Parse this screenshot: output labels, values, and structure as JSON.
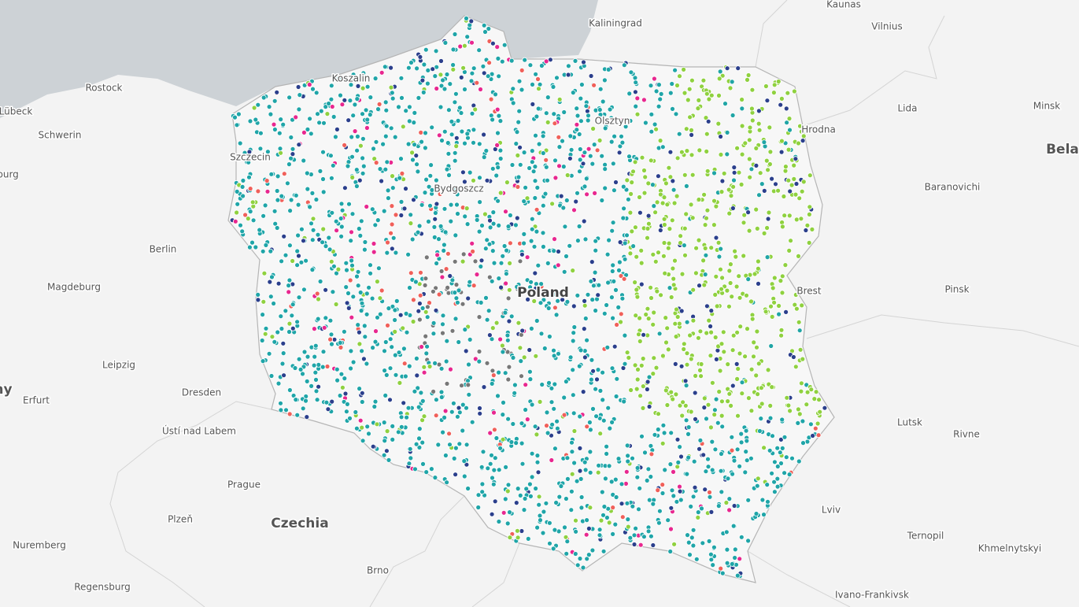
{
  "map": {
    "labels": [
      "Kaunas",
      "Vilnius",
      "Kaliningrad",
      "Rostock",
      "Lübeck",
      "Schwerin",
      "burg",
      "Minsk",
      "Bela",
      "Lida",
      "Hrodna",
      "Baranovichi",
      "Berlin",
      "Magdeburg",
      "Pinsk",
      "Brest",
      "Leipzig",
      "Dresden",
      "Erfurt",
      "ny",
      "Ústí nad Labem",
      "Lutsk",
      "Rivne",
      "Prague",
      "Plzeň",
      "Czechia",
      "Lviv",
      "Ternopil",
      "Khmelnytskyi",
      "Nuremberg",
      "Brno",
      "Regensburg",
      "Ivano-Frankivsk",
      "Poland",
      "Olsztyn",
      "Bydgoszcz",
      "Szczecin",
      "Koszalin"
    ]
  }
}
